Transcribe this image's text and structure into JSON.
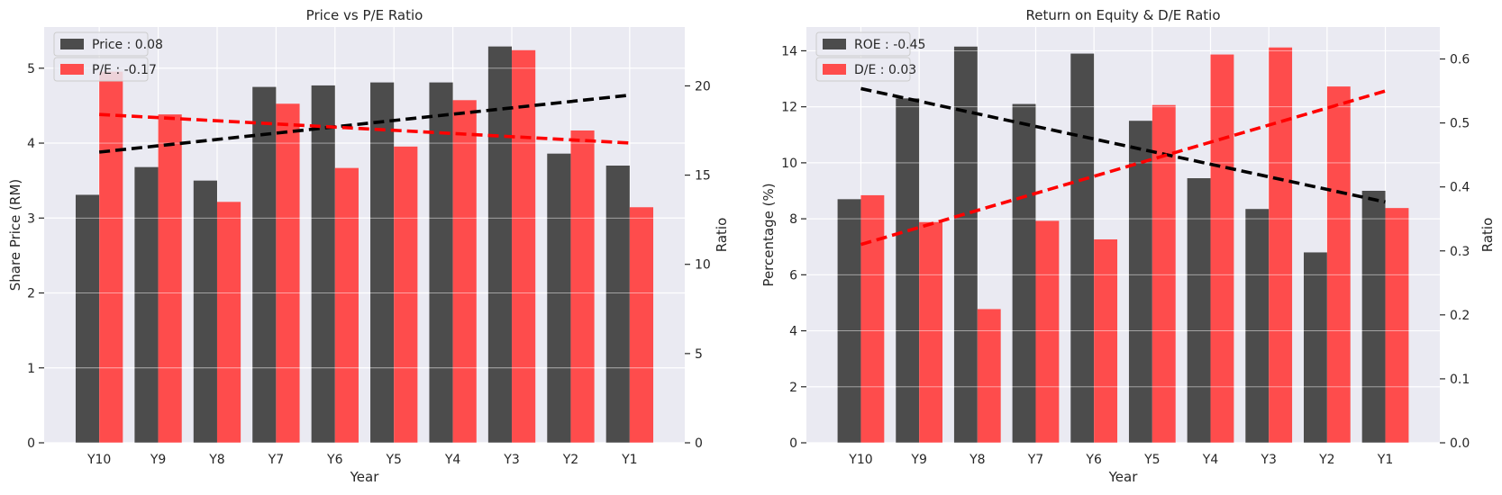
{
  "chart_data": [
    {
      "type": "bar",
      "title": "Price vs P/E Ratio",
      "xlabel": "Year",
      "ylabel": "Share Price (RM)",
      "ylabel_right": "Ratio",
      "categories": [
        "Y10",
        "Y9",
        "Y8",
        "Y7",
        "Y6",
        "Y5",
        "Y4",
        "Y3",
        "Y2",
        "Y1"
      ],
      "ylim": [
        0,
        5.55
      ],
      "ylim_right": [
        0,
        23.3
      ],
      "yticks": [
        "0",
        "1",
        "2",
        "3",
        "4",
        "5"
      ],
      "yticks_right": [
        "0",
        "5",
        "10",
        "15",
        "20"
      ],
      "series": [
        {
          "name": "Price : 0.08",
          "axis": "left",
          "color": "#404040",
          "values": [
            3.31,
            3.68,
            3.5,
            4.75,
            4.77,
            4.81,
            4.81,
            5.29,
            3.86,
            3.7
          ]
        },
        {
          "name": "P/E : -0.17",
          "axis": "right",
          "color": "#ff4040",
          "values": [
            20.8,
            18.4,
            13.5,
            19.0,
            15.4,
            16.6,
            19.2,
            22.0,
            17.5,
            13.2
          ]
        }
      ],
      "trendlines": [
        {
          "axis": "left",
          "color": "#000000",
          "start": 3.88,
          "end": 4.64
        },
        {
          "axis": "right",
          "color": "#ff0000",
          "start": 18.4,
          "end": 16.8
        }
      ],
      "grid": true,
      "legend": "top-left"
    },
    {
      "type": "bar",
      "title": "Return on Equity & D/E Ratio",
      "xlabel": "Year",
      "ylabel": "Percentage (%)",
      "ylabel_right": "Ratio",
      "categories": [
        "Y10",
        "Y9",
        "Y8",
        "Y7",
        "Y6",
        "Y5",
        "Y4",
        "Y3",
        "Y2",
        "Y1"
      ],
      "ylim": [
        0,
        14.85
      ],
      "ylim_right": [
        0,
        0.65
      ],
      "yticks": [
        "0",
        "2",
        "4",
        "6",
        "8",
        "10",
        "12",
        "14"
      ],
      "yticks_right": [
        "0.0",
        "0.1",
        "0.2",
        "0.3",
        "0.4",
        "0.5",
        "0.6"
      ],
      "series": [
        {
          "name": "ROE : -0.45",
          "axis": "left",
          "color": "#404040",
          "values": [
            8.7,
            12.3,
            14.15,
            12.1,
            13.9,
            11.5,
            9.45,
            8.35,
            6.8,
            9.0
          ]
        },
        {
          "name": "D/E : 0.03",
          "axis": "right",
          "color": "#ff4040",
          "values": [
            0.387,
            0.345,
            0.209,
            0.347,
            0.318,
            0.528,
            0.607,
            0.618,
            0.557,
            0.367
          ]
        }
      ],
      "trendlines": [
        {
          "axis": "left",
          "color": "#000000",
          "start": 12.65,
          "end": 8.6
        },
        {
          "axis": "right",
          "color": "#ff0000",
          "start": 0.31,
          "end": 0.55
        }
      ],
      "grid": true,
      "legend": "top-left"
    }
  ]
}
